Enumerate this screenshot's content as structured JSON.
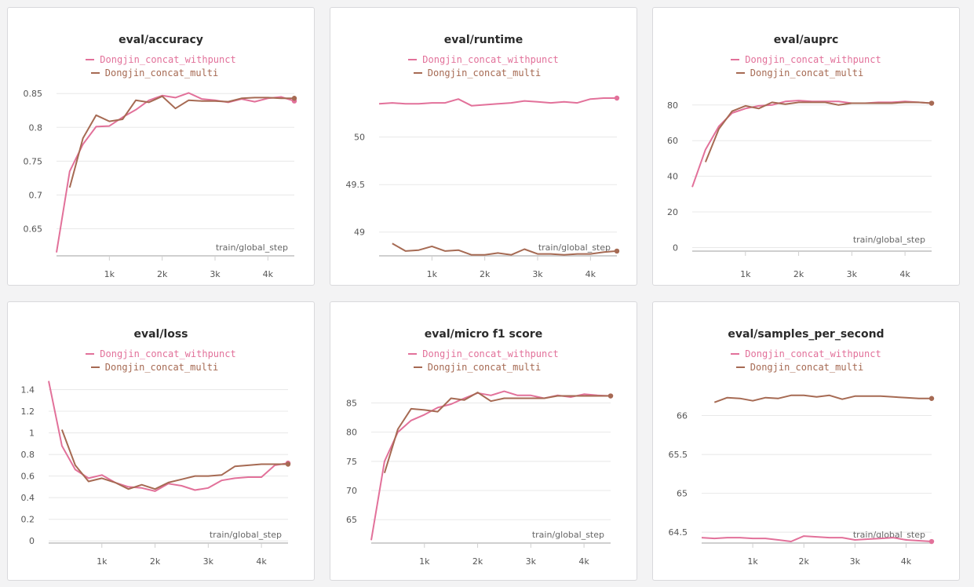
{
  "colors": {
    "withpunct": "#e2719a",
    "multi": "#a66a53",
    "grid": "#e8e8e8",
    "axis": "#cfcfcf"
  },
  "series_names": [
    "Dongjin_concat_withpunct",
    "Dongjin_concat_multi"
  ],
  "xlabel": "train/global_step",
  "chart_data": [
    {
      "type": "line",
      "title": "eval/accuracy",
      "xlabel": "train/global_step",
      "x_ticks": [
        "1k",
        "2k",
        "3k",
        "4k"
      ],
      "y_ticks": [
        "0.65",
        "0.7",
        "0.75",
        "0.8",
        "0.85"
      ],
      "series": [
        {
          "name": "Dongjin_concat_withpunct",
          "color": "#e2719a",
          "x": [
            0,
            250,
            500,
            750,
            1000,
            1250,
            1500,
            1750,
            2000,
            2250,
            2500,
            2750,
            3000,
            3250,
            3500,
            3750,
            4000,
            4250,
            4500
          ],
          "y": [
            0.615,
            0.735,
            0.775,
            0.801,
            0.802,
            0.815,
            0.826,
            0.84,
            0.847,
            0.844,
            0.851,
            0.842,
            0.84,
            0.837,
            0.842,
            0.838,
            0.843,
            0.845,
            0.839
          ]
        },
        {
          "name": "Dongjin_concat_multi",
          "color": "#a66a53",
          "x": [
            250,
            500,
            750,
            1000,
            1250,
            1500,
            1750,
            2000,
            2250,
            2500,
            2750,
            3000,
            3250,
            3500,
            3750,
            4000,
            4250,
            4500
          ],
          "y": [
            0.711,
            0.784,
            0.818,
            0.809,
            0.812,
            0.84,
            0.837,
            0.846,
            0.828,
            0.84,
            0.839,
            0.839,
            0.838,
            0.843,
            0.844,
            0.844,
            0.843,
            0.843
          ]
        }
      ],
      "xlim": [
        0,
        4500
      ],
      "ylim": [
        0.61,
        0.87
      ],
      "legend": "top-center"
    },
    {
      "type": "line",
      "title": "eval/runtime",
      "xlabel": "train/global_step",
      "x_ticks": [
        "1k",
        "2k",
        "3k",
        "4k"
      ],
      "y_ticks": [
        "49",
        "49.5",
        "50"
      ],
      "series": [
        {
          "name": "Dongjin_concat_withpunct",
          "color": "#e2719a",
          "x": [
            0,
            250,
            500,
            750,
            1000,
            1250,
            1500,
            1750,
            2000,
            2250,
            2500,
            2750,
            3000,
            3250,
            3500,
            3750,
            4000,
            4250,
            4500
          ],
          "y": [
            50.35,
            50.36,
            50.35,
            50.35,
            50.36,
            50.36,
            50.4,
            50.33,
            50.34,
            50.35,
            50.36,
            50.38,
            50.37,
            50.36,
            50.37,
            50.36,
            50.4,
            50.41,
            50.41
          ]
        },
        {
          "name": "Dongjin_concat_multi",
          "color": "#a66a53",
          "x": [
            250,
            500,
            750,
            1000,
            1250,
            1500,
            1750,
            2000,
            2250,
            2500,
            2750,
            3000,
            3250,
            3500,
            3750,
            4000,
            4250,
            4500
          ],
          "y": [
            48.88,
            48.8,
            48.81,
            48.85,
            48.8,
            48.81,
            48.76,
            48.76,
            48.78,
            48.76,
            48.82,
            48.77,
            48.77,
            48.76,
            48.77,
            48.77,
            48.79,
            48.8
          ]
        }
      ],
      "xlim": [
        0,
        4500
      ],
      "ylim": [
        48.75,
        50.6
      ],
      "legend": "top-center"
    },
    {
      "type": "line",
      "title": "eval/auprc",
      "xlabel": "train/global_step",
      "x_ticks": [
        "1k",
        "2k",
        "3k",
        "4k"
      ],
      "y_ticks": [
        "0",
        "20",
        "40",
        "60",
        "80"
      ],
      "series": [
        {
          "name": "Dongjin_concat_withpunct",
          "color": "#e2719a",
          "x": [
            0,
            250,
            500,
            750,
            1000,
            1250,
            1500,
            1750,
            2000,
            2250,
            2500,
            2750,
            3000,
            3250,
            3500,
            3750,
            4000,
            4250,
            4500
          ],
          "y": [
            34,
            55,
            68,
            75.5,
            78,
            79.5,
            80,
            82,
            82.5,
            82,
            82,
            82,
            81,
            81,
            81.5,
            81.5,
            82,
            81.5,
            81
          ]
        },
        {
          "name": "Dongjin_concat_multi",
          "color": "#a66a53",
          "x": [
            250,
            500,
            750,
            1000,
            1250,
            1500,
            1750,
            2000,
            2250,
            2500,
            2750,
            3000,
            3250,
            3500,
            3750,
            4000,
            4250,
            4500
          ],
          "y": [
            48,
            66.5,
            76.5,
            79.5,
            78,
            81.5,
            80.5,
            81.5,
            81.5,
            81.5,
            80,
            81,
            81,
            81,
            81,
            81.5,
            81.5,
            81
          ]
        }
      ],
      "xlim": [
        0,
        4500
      ],
      "ylim": [
        -2,
        94
      ],
      "legend": "top-center"
    },
    {
      "type": "line",
      "title": "eval/loss",
      "xlabel": "train/global_step",
      "x_ticks": [
        "1k",
        "2k",
        "3k",
        "4k"
      ],
      "y_ticks": [
        "0",
        "0.2",
        "0.4",
        "0.6",
        "0.8",
        "1",
        "1.2",
        "1.4"
      ],
      "series": [
        {
          "name": "Dongjin_concat_withpunct",
          "color": "#e2719a",
          "x": [
            0,
            250,
            500,
            750,
            1000,
            1250,
            1500,
            1750,
            2000,
            2250,
            2500,
            2750,
            3000,
            3250,
            3500,
            3750,
            4000,
            4250,
            4500
          ],
          "y": [
            1.48,
            0.88,
            0.66,
            0.58,
            0.61,
            0.54,
            0.5,
            0.49,
            0.46,
            0.53,
            0.51,
            0.47,
            0.49,
            0.56,
            0.58,
            0.59,
            0.59,
            0.7,
            0.72
          ]
        },
        {
          "name": "Dongjin_concat_multi",
          "color": "#a66a53",
          "x": [
            250,
            500,
            750,
            1000,
            1250,
            1500,
            1750,
            2000,
            2250,
            2500,
            2750,
            3000,
            3250,
            3500,
            3750,
            4000,
            4250,
            4500
          ],
          "y": [
            1.03,
            0.7,
            0.55,
            0.58,
            0.54,
            0.48,
            0.52,
            0.48,
            0.54,
            0.57,
            0.6,
            0.6,
            0.61,
            0.69,
            0.7,
            0.71,
            0.71,
            0.71
          ]
        }
      ],
      "xlim": [
        0,
        4500
      ],
      "ylim": [
        -0.02,
        1.52
      ],
      "legend": "top-center"
    },
    {
      "type": "line",
      "title": "eval/micro f1 score",
      "xlabel": "train/global_step",
      "x_ticks": [
        "1k",
        "2k",
        "3k",
        "4k"
      ],
      "y_ticks": [
        "65",
        "70",
        "75",
        "80",
        "85"
      ],
      "series": [
        {
          "name": "Dongjin_concat_withpunct",
          "color": "#e2719a",
          "x": [
            0,
            250,
            500,
            750,
            1000,
            1250,
            1500,
            1750,
            2000,
            2250,
            2500,
            2750,
            3000,
            3250,
            3500,
            3750,
            4000,
            4250,
            4500
          ],
          "y": [
            61.5,
            75,
            80,
            82,
            83,
            84.2,
            84.8,
            85.8,
            86.7,
            86.3,
            87,
            86.3,
            86.3,
            85.8,
            86.3,
            86,
            86.5,
            86.3,
            86.2
          ]
        },
        {
          "name": "Dongjin_concat_multi",
          "color": "#a66a53",
          "x": [
            250,
            500,
            750,
            1000,
            1250,
            1500,
            1750,
            2000,
            2250,
            2500,
            2750,
            3000,
            3250,
            3500,
            3750,
            4000,
            4250,
            4500
          ],
          "y": [
            73,
            80.5,
            84,
            83.8,
            83.5,
            85.8,
            85.5,
            86.8,
            85.3,
            85.8,
            85.8,
            85.8,
            85.8,
            86.2,
            86.2,
            86.2,
            86.2,
            86.2
          ]
        }
      ],
      "xlim": [
        0,
        4500
      ],
      "ylim": [
        61,
        89.5
      ],
      "legend": "top-center"
    },
    {
      "type": "line",
      "title": "eval/samples_per_second",
      "xlabel": "train/global_step",
      "x_ticks": [
        "1k",
        "2k",
        "3k",
        "4k"
      ],
      "y_ticks": [
        "64.5",
        "65",
        "65.5",
        "66"
      ],
      "series": [
        {
          "name": "Dongjin_concat_withpunct",
          "color": "#e2719a",
          "x": [
            0,
            250,
            500,
            750,
            1000,
            1250,
            1500,
            1750,
            2000,
            2250,
            2500,
            2750,
            3000,
            3250,
            3500,
            3750,
            4000,
            4250,
            4500
          ],
          "y": [
            64.43,
            64.42,
            64.43,
            64.43,
            64.42,
            64.42,
            64.4,
            64.38,
            64.45,
            64.44,
            64.43,
            64.43,
            64.4,
            64.41,
            64.42,
            64.43,
            64.4,
            64.39,
            64.38
          ]
        },
        {
          "name": "Dongjin_concat_multi",
          "color": "#a66a53",
          "x": [
            250,
            500,
            750,
            1000,
            1250,
            1500,
            1750,
            2000,
            2250,
            2500,
            2750,
            3000,
            3250,
            3500,
            3750,
            4000,
            4250,
            4500
          ],
          "y": [
            66.17,
            66.23,
            66.22,
            66.19,
            66.23,
            66.22,
            66.26,
            66.26,
            66.24,
            66.26,
            66.21,
            66.25,
            66.25,
            66.25,
            66.24,
            66.23,
            66.22,
            66.22
          ]
        }
      ],
      "xlim": [
        0,
        4500
      ],
      "ylim": [
        64.36,
        66.5
      ],
      "legend": "top-center"
    }
  ]
}
